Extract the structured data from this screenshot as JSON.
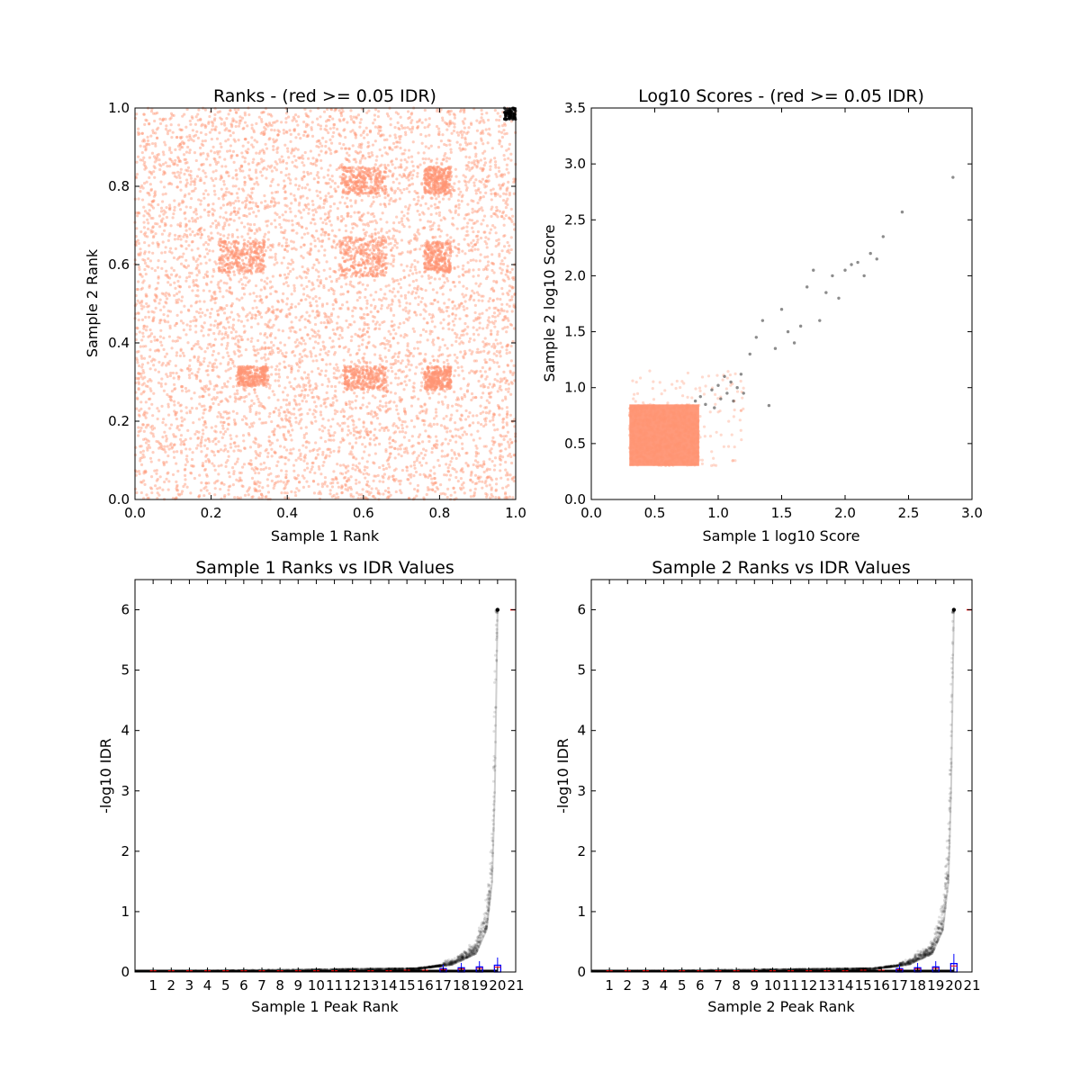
{
  "chart_data": [
    {
      "type": "scatter",
      "title": "Ranks - (red >= 0.05 IDR)",
      "xlabel": "Sample 1 Rank",
      "ylabel": "Sample 2 Rank",
      "xlim": [
        0.0,
        1.0
      ],
      "ylim": [
        0.0,
        1.0
      ],
      "xticks": [
        "0.0",
        "0.2",
        "0.4",
        "0.6",
        "0.8",
        "1.0"
      ],
      "yticks": [
        "0.0",
        "0.2",
        "0.4",
        "0.6",
        "0.8",
        "1.0"
      ],
      "colors": {
        "low_idr": "#000000",
        "high_idr": "#ff9473"
      },
      "point_groups": [
        {
          "class": "high_idr",
          "region": {
            "x": [
              0.0,
              1.0
            ],
            "y": [
              0.0,
              1.0
            ]
          },
          "approx_count": 6000
        },
        {
          "class": "low_idr",
          "region": {
            "x": [
              0.97,
              1.0
            ],
            "y": [
              0.97,
              1.0
            ]
          },
          "approx_count": 80
        }
      ],
      "dense_blocks": [
        {
          "x": [
            0.22,
            0.34
          ],
          "y": [
            0.58,
            0.66
          ]
        },
        {
          "x": [
            0.54,
            0.66
          ],
          "y": [
            0.57,
            0.67
          ]
        },
        {
          "x": [
            0.55,
            0.66
          ],
          "y": [
            0.28,
            0.34
          ]
        },
        {
          "x": [
            0.27,
            0.35
          ],
          "y": [
            0.29,
            0.34
          ]
        },
        {
          "x": [
            0.54,
            0.66
          ],
          "y": [
            0.78,
            0.85
          ]
        },
        {
          "x": [
            0.76,
            0.83
          ],
          "y": [
            0.78,
            0.85
          ]
        },
        {
          "x": [
            0.76,
            0.83
          ],
          "y": [
            0.28,
            0.34
          ]
        },
        {
          "x": [
            0.76,
            0.83
          ],
          "y": [
            0.58,
            0.66
          ]
        }
      ]
    },
    {
      "type": "scatter",
      "title": "Log10 Scores - (red >= 0.05 IDR)",
      "xlabel": "Sample 1 log10 Score",
      "ylabel": "Sample 2 log10 Score",
      "xlim": [
        0.0,
        3.0
      ],
      "ylim": [
        0.0,
        3.5
      ],
      "xticks": [
        "0.0",
        "0.5",
        "1.0",
        "1.5",
        "2.0",
        "2.5",
        "3.0"
      ],
      "yticks": [
        "0.0",
        "0.5",
        "1.0",
        "1.5",
        "2.0",
        "2.5",
        "3.0",
        "3.5"
      ],
      "colors": {
        "low_idr": "#000000",
        "high_idr": "#ff9473"
      },
      "point_groups": [
        {
          "class": "high_idr",
          "region": {
            "x": [
              0.3,
              0.85
            ],
            "y": [
              0.3,
              0.85
            ]
          },
          "approx_count": 3500
        },
        {
          "class": "high_idr",
          "region": {
            "x": [
              0.3,
              1.2
            ],
            "y": [
              0.3,
              1.15
            ]
          },
          "approx_count": 150
        }
      ],
      "points": [
        [
          0.82,
          0.88
        ],
        [
          0.86,
          0.92
        ],
        [
          0.9,
          0.85
        ],
        [
          0.95,
          0.98
        ],
        [
          0.97,
          0.82
        ],
        [
          1.0,
          1.02
        ],
        [
          1.02,
          0.9
        ],
        [
          1.05,
          1.1
        ],
        [
          1.07,
          0.95
        ],
        [
          1.1,
          1.05
        ],
        [
          1.12,
          0.88
        ],
        [
          1.15,
          1.0
        ],
        [
          1.18,
          1.12
        ],
        [
          1.2,
          0.95
        ],
        [
          1.25,
          1.3
        ],
        [
          1.3,
          1.45
        ],
        [
          1.35,
          1.6
        ],
        [
          1.4,
          0.84
        ],
        [
          1.45,
          1.35
        ],
        [
          1.5,
          1.7
        ],
        [
          1.55,
          1.5
        ],
        [
          1.6,
          1.4
        ],
        [
          1.65,
          1.55
        ],
        [
          1.7,
          1.9
        ],
        [
          1.75,
          2.05
        ],
        [
          1.8,
          1.6
        ],
        [
          1.85,
          1.85
        ],
        [
          1.9,
          2.0
        ],
        [
          1.95,
          1.8
        ],
        [
          2.0,
          2.05
        ],
        [
          2.05,
          2.1
        ],
        [
          2.1,
          2.12
        ],
        [
          2.15,
          2.0
        ],
        [
          2.2,
          2.2
        ],
        [
          2.25,
          2.15
        ],
        [
          2.3,
          2.35
        ],
        [
          2.45,
          2.57
        ],
        [
          2.85,
          2.88
        ]
      ]
    },
    {
      "type": "scatter",
      "title": "Sample 1 Ranks vs IDR Values",
      "xlabel": "Sample 1 Peak Rank",
      "ylabel": "-log10 IDR",
      "xlim": [
        0,
        21
      ],
      "ylim": [
        0,
        6.5
      ],
      "xticks": [
        "1",
        "2",
        "3",
        "4",
        "5",
        "6",
        "7",
        "8",
        "9",
        "10",
        "11",
        "12",
        "13",
        "14",
        "15",
        "16",
        "17",
        "18",
        "19",
        "20",
        "21"
      ],
      "yticks": [
        "0",
        "1",
        "2",
        "3",
        "4",
        "5",
        "6"
      ],
      "idr_curve": {
        "x": [
          0,
          15.5,
          17.5,
          18.8,
          19.4,
          19.7,
          19.85,
          19.95,
          20.0
        ],
        "y": [
          0.01,
          0.05,
          0.12,
          0.3,
          0.7,
          1.5,
          3.0,
          5.0,
          6.0
        ]
      },
      "max_point": [
        20,
        6.0
      ],
      "boxplot_medians": [
        0.02,
        0.02,
        0.02,
        0.02,
        0.02,
        0.02,
        0.02,
        0.02,
        0.02,
        0.02,
        0.02,
        0.02,
        0.02,
        0.02,
        0.03,
        0.03,
        0.04,
        0.05,
        0.06,
        0.08
      ]
    },
    {
      "type": "scatter",
      "title": "Sample 2 Ranks vs IDR Values",
      "xlabel": "Sample 2 Peak Rank",
      "ylabel": "-log10 IDR",
      "xlim": [
        0,
        21
      ],
      "ylim": [
        0,
        6.5
      ],
      "xticks": [
        "1",
        "2",
        "3",
        "4",
        "5",
        "6",
        "7",
        "8",
        "9",
        "10",
        "11",
        "12",
        "13",
        "14",
        "15",
        "16",
        "17",
        "18",
        "19",
        "20",
        "21"
      ],
      "yticks": [
        "0",
        "1",
        "2",
        "3",
        "4",
        "5",
        "6"
      ],
      "idr_curve": {
        "x": [
          0,
          15.5,
          17.5,
          18.8,
          19.4,
          19.7,
          19.85,
          19.95,
          20.0
        ],
        "y": [
          0.01,
          0.05,
          0.12,
          0.3,
          0.7,
          1.5,
          3.0,
          5.0,
          6.0
        ]
      },
      "max_point": [
        20,
        6.0
      ],
      "boxplot_medians": [
        0.02,
        0.02,
        0.02,
        0.02,
        0.02,
        0.02,
        0.02,
        0.02,
        0.02,
        0.02,
        0.02,
        0.02,
        0.02,
        0.02,
        0.03,
        0.03,
        0.04,
        0.05,
        0.06,
        0.1
      ]
    }
  ]
}
